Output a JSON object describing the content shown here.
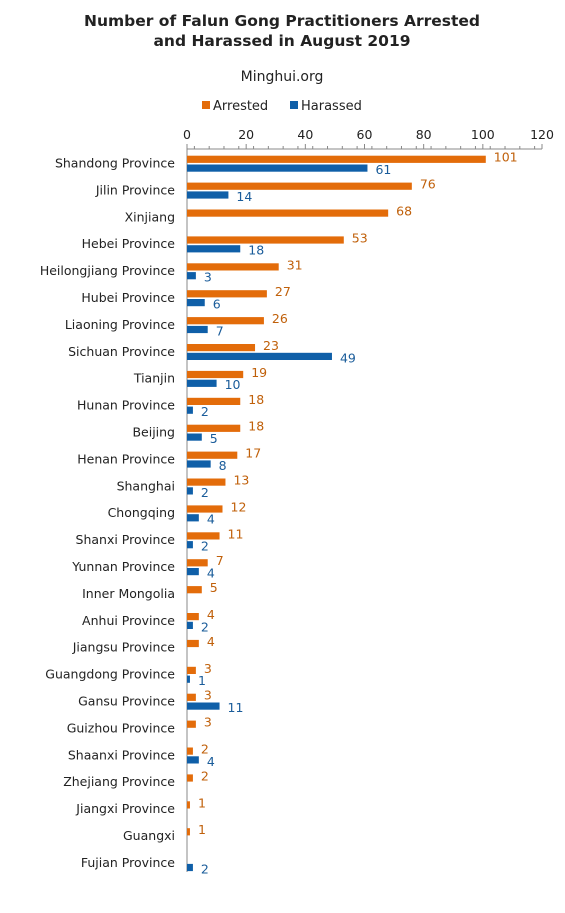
{
  "chart_data": {
    "type": "bar",
    "orientation": "horizontal",
    "title": [
      "Number of Falun Gong Practitioners Arrested",
      "and Harassed in August 2019"
    ],
    "subtitle": "Minghui.org",
    "xlim": [
      0,
      120
    ],
    "xticks": [
      "0",
      "20",
      "40",
      "60",
      "80",
      "100",
      "120"
    ],
    "legend_position": "top",
    "categories": [
      "Shandong Province",
      "Jilin Province",
      "Xinjiang",
      "Hebei Province",
      "Heilongjiang Province",
      "Hubei Province",
      "Liaoning Province",
      "Sichuan Province",
      "Tianjin",
      "Hunan Province",
      "Beijing",
      "Henan Province",
      "Shanghai",
      "Chongqing",
      "Shanxi Province",
      "Yunnan Province",
      "Inner Mongolia",
      "Anhui Province",
      "Jiangsu Province",
      "Guangdong Province",
      "Gansu Province",
      "Guizhou Province",
      "Shaanxi Province",
      "Zhejiang Province",
      "Jiangxi Province",
      "Guangxi",
      "Fujian Province"
    ],
    "series": [
      {
        "name": "Arrested",
        "color": "#E36C0A",
        "label_color": "#C0600A",
        "values": [
          101,
          76,
          68,
          53,
          31,
          27,
          26,
          23,
          19,
          18,
          18,
          17,
          13,
          12,
          11,
          7,
          5,
          4,
          4,
          3,
          3,
          3,
          2,
          2,
          1,
          1,
          null
        ]
      },
      {
        "name": "Harassed",
        "color": "#0F5FA8",
        "label_color": "#1A5C9A",
        "values": [
          61,
          14,
          null,
          18,
          3,
          6,
          7,
          49,
          10,
          2,
          5,
          8,
          2,
          4,
          2,
          4,
          null,
          2,
          null,
          1,
          11,
          null,
          4,
          null,
          null,
          null,
          2
        ]
      }
    ]
  }
}
